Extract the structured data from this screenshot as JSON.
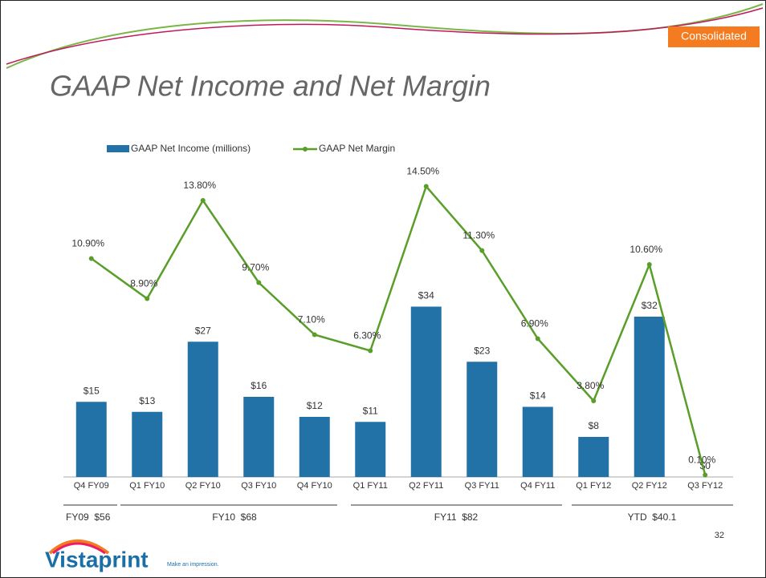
{
  "slide": {
    "badge": "Consolidated",
    "page_number": "32",
    "logo": "Vistaprint",
    "tagline": "Make an impression.",
    "groups": [
      "FY09  $56",
      "FY10  $68",
      "FY11  $82",
      "YTD  $40.1"
    ]
  },
  "chart_data": {
    "type": "bar",
    "title": "GAAP Net Income and Net Margin",
    "categories": [
      "Q4 FY09",
      "Q1 FY10",
      "Q2 FY10",
      "Q3 FY10",
      "Q4 FY10",
      "Q1 FY11",
      "Q2 FY11",
      "Q3 FY11",
      "Q4 FY11",
      "Q1 FY12",
      "Q2 FY12",
      "Q3 FY12"
    ],
    "series": [
      {
        "name": "GAAP Net Income (millions)",
        "type": "bar",
        "color": "#2272a8",
        "values": [
          15,
          13,
          27,
          16,
          12,
          11,
          34,
          23,
          14,
          8,
          32,
          0
        ],
        "value_labels": [
          "$15",
          "$13",
          "$27",
          "$16",
          "$12",
          "$11",
          "$34",
          "$23",
          "$14",
          "$8",
          "$32",
          "$0"
        ]
      },
      {
        "name": "GAAP Net Margin",
        "type": "line",
        "axis": "y2",
        "color": "#5a9e2a",
        "values": [
          10.9,
          8.9,
          13.8,
          9.7,
          7.1,
          6.3,
          14.5,
          11.3,
          6.9,
          3.8,
          10.6,
          0.1
        ],
        "value_labels": [
          "10.90%",
          "8.90%",
          "13.80%",
          "9.70%",
          "7.10%",
          "6.30%",
          "14.50%",
          "11.30%",
          "6.90%",
          "3.80%",
          "10.60%",
          "0.10%"
        ]
      }
    ],
    "ylim": [
      0,
      68
    ],
    "y2lim": [
      0,
      17
    ],
    "legend": "top"
  }
}
